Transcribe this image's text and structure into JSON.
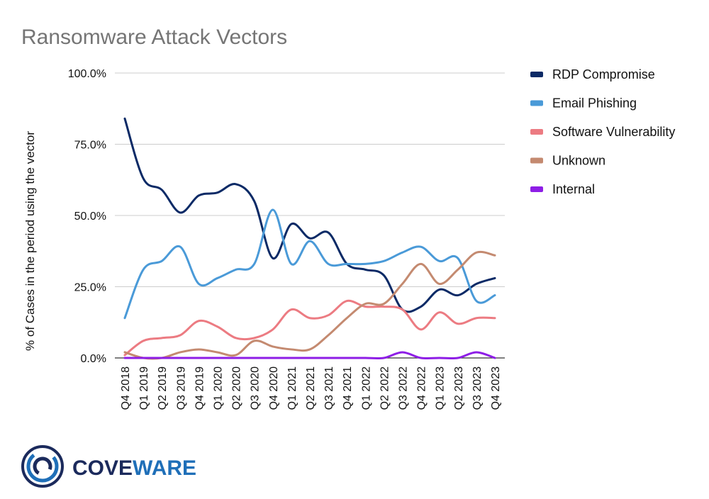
{
  "chart_data": {
    "type": "line",
    "title": "Ransomware Attack Vectors",
    "xlabel": "",
    "ylabel": "% of Cases in the period using the vector",
    "ylim": [
      0,
      100
    ],
    "y_ticks": [
      "0.0%",
      "25.0%",
      "50.0%",
      "75.0%",
      "100.0%"
    ],
    "y_tick_values": [
      0,
      25,
      50,
      75,
      100
    ],
    "grid": true,
    "legend": "right",
    "categories": [
      "Q4 2018",
      "Q1 2019",
      "Q2 2019",
      "Q3 2019",
      "Q4 2019",
      "Q1 2020",
      "Q2 2020",
      "Q3 2020",
      "Q4 2020",
      "Q1 2021",
      "Q2 2021",
      "Q3 2021",
      "Q4 2021",
      "Q1 2022",
      "Q2 2022",
      "Q3 2022",
      "Q4 2022",
      "Q1 2023",
      "Q2 2023",
      "Q3 2023",
      "Q4 2023"
    ],
    "series": [
      {
        "name": "RDP Compromise",
        "color": "#0b2a66",
        "values": [
          84,
          63,
          59,
          51,
          57,
          58,
          61,
          55,
          35,
          47,
          42,
          44,
          33,
          31,
          29,
          17,
          18,
          24,
          22,
          26,
          28
        ]
      },
      {
        "name": "Email Phishing",
        "color": "#4a9ad8",
        "values": [
          14,
          31,
          34,
          39,
          26,
          28,
          31,
          33,
          52,
          33,
          41,
          33,
          33,
          33,
          34,
          37,
          39,
          34,
          35,
          20,
          22
        ]
      },
      {
        "name": "Software Vulnerability",
        "color": "#ec7b82",
        "values": [
          1,
          6,
          7,
          8,
          13,
          11,
          7,
          7,
          10,
          17,
          14,
          15,
          20,
          18,
          18,
          17,
          10,
          16,
          12,
          14,
          14
        ]
      },
      {
        "name": "Unknown",
        "color": "#c48a70",
        "values": [
          2,
          0,
          0,
          2,
          3,
          2,
          1,
          6,
          4,
          3,
          3,
          8,
          14,
          19,
          19,
          26,
          33,
          26,
          31,
          37,
          36
        ]
      },
      {
        "name": "Internal",
        "color": "#8e1ee6",
        "values": [
          0,
          0,
          0,
          0,
          0,
          0,
          0,
          0,
          0,
          0,
          0,
          0,
          0,
          0,
          0,
          2,
          0,
          0,
          0,
          2,
          0
        ]
      }
    ]
  },
  "brand": {
    "name_part1": "COVE",
    "name_part2": "WARE",
    "colors": {
      "navy": "#1b2a5c",
      "blue": "#1f6fb8"
    },
    "icon": "coveware-circle-logo"
  }
}
